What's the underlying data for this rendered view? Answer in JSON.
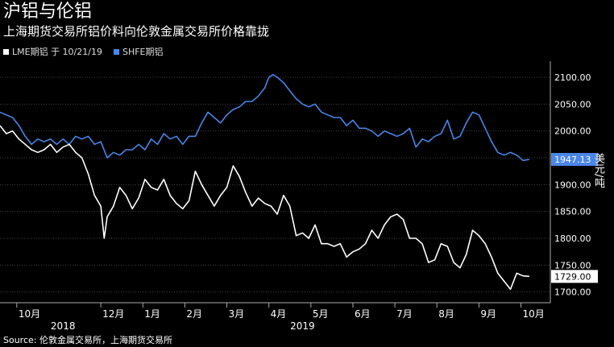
{
  "header": {
    "title": "沪铝与伦铝",
    "subtitle": "上海期货交易所铝价料向伦敦金属交易所价格靠拢"
  },
  "legend": {
    "lme_label": "LME期铝 于 10/21/19",
    "shfe_label": "SHFE期铝"
  },
  "source": "Source: 伦敦金属交易所，上海期货交易所",
  "colors": {
    "lme": "#ffffff",
    "shfe": "#4a86e8",
    "background": "#000000",
    "grid": "#444444"
  },
  "chart_data": {
    "type": "line",
    "ylabel": "美元/吨",
    "ylim": [
      1680,
      2130
    ],
    "yticks": [
      1700,
      1750,
      1800,
      1850,
      1900,
      1950,
      2000,
      2050,
      2100
    ],
    "ytick_labels": [
      "1700.00",
      "1750.00",
      "1800.00",
      "1850.00",
      "1900.00",
      "1950.00",
      "2000.00",
      "2050.00",
      "2100.00"
    ],
    "x_range": [
      9.6,
      22.7
    ],
    "xticks": [
      {
        "x": 10,
        "label": "10月"
      },
      {
        "x": 12,
        "label": "12月"
      },
      {
        "x": 13,
        "label": "1月"
      },
      {
        "x": 14,
        "label": "2月"
      },
      {
        "x": 15,
        "label": "3月"
      },
      {
        "x": 16,
        "label": "4月"
      },
      {
        "x": 17,
        "label": "5月"
      },
      {
        "x": 18,
        "label": "6月"
      },
      {
        "x": 19,
        "label": "7月"
      },
      {
        "x": 20,
        "label": "8月"
      },
      {
        "x": 21,
        "label": "9月"
      },
      {
        "x": 22,
        "label": "10月"
      }
    ],
    "year_labels": [
      {
        "x": 11.1,
        "label": "2018"
      },
      {
        "x": 16.8,
        "label": "2019"
      }
    ],
    "last_value_labels": {
      "lme": "1729.00",
      "shfe": "1947.13"
    },
    "series": [
      {
        "name": "SHFE期铝",
        "key": "shfe",
        "points": [
          [
            9.6,
            2035
          ],
          [
            9.75,
            2030
          ],
          [
            9.9,
            2025
          ],
          [
            10.05,
            2010
          ],
          [
            10.2,
            1990
          ],
          [
            10.35,
            1975
          ],
          [
            10.5,
            1985
          ],
          [
            10.65,
            1980
          ],
          [
            10.8,
            1985
          ],
          [
            10.95,
            1975
          ],
          [
            11.1,
            1985
          ],
          [
            11.25,
            1975
          ],
          [
            11.4,
            1990
          ],
          [
            11.55,
            1985
          ],
          [
            11.7,
            1990
          ],
          [
            11.85,
            1975
          ],
          [
            12.0,
            1980
          ],
          [
            12.15,
            1950
          ],
          [
            12.3,
            1960
          ],
          [
            12.45,
            1955
          ],
          [
            12.6,
            1965
          ],
          [
            12.75,
            1965
          ],
          [
            12.9,
            1975
          ],
          [
            13.05,
            1965
          ],
          [
            13.2,
            1985
          ],
          [
            13.35,
            1975
          ],
          [
            13.5,
            1995
          ],
          [
            13.65,
            1985
          ],
          [
            13.8,
            1990
          ],
          [
            13.95,
            1975
          ],
          [
            14.1,
            1990
          ],
          [
            14.25,
            1990
          ],
          [
            14.4,
            2015
          ],
          [
            14.55,
            2035
          ],
          [
            14.7,
            2025
          ],
          [
            14.85,
            2015
          ],
          [
            15.0,
            2030
          ],
          [
            15.15,
            2040
          ],
          [
            15.3,
            2045
          ],
          [
            15.45,
            2055
          ],
          [
            15.6,
            2055
          ],
          [
            15.75,
            2065
          ],
          [
            15.9,
            2080
          ],
          [
            16.0,
            2100
          ],
          [
            16.1,
            2105
          ],
          [
            16.2,
            2100
          ],
          [
            16.35,
            2090
          ],
          [
            16.5,
            2075
          ],
          [
            16.65,
            2060
          ],
          [
            16.8,
            2050
          ],
          [
            16.95,
            2045
          ],
          [
            17.1,
            2050
          ],
          [
            17.25,
            2035
          ],
          [
            17.4,
            2030
          ],
          [
            17.55,
            2025
          ],
          [
            17.7,
            2025
          ],
          [
            17.85,
            2010
          ],
          [
            18.0,
            2020
          ],
          [
            18.15,
            2005
          ],
          [
            18.3,
            2005
          ],
          [
            18.45,
            2000
          ],
          [
            18.6,
            1990
          ],
          [
            18.75,
            2000
          ],
          [
            18.9,
            1995
          ],
          [
            19.05,
            1990
          ],
          [
            19.2,
            1995
          ],
          [
            19.35,
            2005
          ],
          [
            19.5,
            1970
          ],
          [
            19.65,
            1985
          ],
          [
            19.8,
            1980
          ],
          [
            19.95,
            1990
          ],
          [
            20.1,
            1995
          ],
          [
            20.25,
            2020
          ],
          [
            20.4,
            1985
          ],
          [
            20.55,
            1990
          ],
          [
            20.7,
            2015
          ],
          [
            20.85,
            2035
          ],
          [
            21.0,
            2030
          ],
          [
            21.15,
            2005
          ],
          [
            21.3,
            1980
          ],
          [
            21.45,
            1960
          ],
          [
            21.6,
            1955
          ],
          [
            21.75,
            1960
          ],
          [
            21.9,
            1955
          ],
          [
            22.05,
            1945
          ],
          [
            22.2,
            1947
          ]
        ]
      },
      {
        "name": "LME期铝",
        "key": "lme",
        "points": [
          [
            9.6,
            2010
          ],
          [
            9.75,
            1995
          ],
          [
            9.9,
            2000
          ],
          [
            10.05,
            1985
          ],
          [
            10.2,
            1975
          ],
          [
            10.35,
            1965
          ],
          [
            10.5,
            1960
          ],
          [
            10.65,
            1965
          ],
          [
            10.8,
            1975
          ],
          [
            10.95,
            1960
          ],
          [
            11.1,
            1970
          ],
          [
            11.25,
            1975
          ],
          [
            11.4,
            1960
          ],
          [
            11.55,
            1950
          ],
          [
            11.7,
            1920
          ],
          [
            11.85,
            1880
          ],
          [
            12.0,
            1860
          ],
          [
            12.08,
            1800
          ],
          [
            12.15,
            1840
          ],
          [
            12.3,
            1860
          ],
          [
            12.45,
            1895
          ],
          [
            12.6,
            1880
          ],
          [
            12.75,
            1855
          ],
          [
            12.9,
            1875
          ],
          [
            13.05,
            1910
          ],
          [
            13.2,
            1895
          ],
          [
            13.35,
            1890
          ],
          [
            13.5,
            1910
          ],
          [
            13.65,
            1880
          ],
          [
            13.8,
            1865
          ],
          [
            13.95,
            1855
          ],
          [
            14.1,
            1870
          ],
          [
            14.25,
            1925
          ],
          [
            14.4,
            1900
          ],
          [
            14.55,
            1880
          ],
          [
            14.7,
            1860
          ],
          [
            14.85,
            1880
          ],
          [
            15.0,
            1895
          ],
          [
            15.15,
            1935
          ],
          [
            15.3,
            1915
          ],
          [
            15.45,
            1885
          ],
          [
            15.6,
            1860
          ],
          [
            15.75,
            1875
          ],
          [
            15.9,
            1865
          ],
          [
            16.05,
            1860
          ],
          [
            16.2,
            1845
          ],
          [
            16.35,
            1880
          ],
          [
            16.5,
            1860
          ],
          [
            16.65,
            1805
          ],
          [
            16.8,
            1810
          ],
          [
            16.95,
            1800
          ],
          [
            17.1,
            1825
          ],
          [
            17.25,
            1790
          ],
          [
            17.4,
            1790
          ],
          [
            17.55,
            1785
          ],
          [
            17.7,
            1790
          ],
          [
            17.85,
            1765
          ],
          [
            18.0,
            1775
          ],
          [
            18.15,
            1780
          ],
          [
            18.3,
            1790
          ],
          [
            18.45,
            1815
          ],
          [
            18.6,
            1800
          ],
          [
            18.75,
            1825
          ],
          [
            18.9,
            1840
          ],
          [
            19.05,
            1845
          ],
          [
            19.2,
            1835
          ],
          [
            19.35,
            1800
          ],
          [
            19.5,
            1800
          ],
          [
            19.65,
            1790
          ],
          [
            19.8,
            1755
          ],
          [
            19.95,
            1760
          ],
          [
            20.1,
            1790
          ],
          [
            20.25,
            1785
          ],
          [
            20.4,
            1755
          ],
          [
            20.55,
            1745
          ],
          [
            20.7,
            1770
          ],
          [
            20.85,
            1815
          ],
          [
            21.0,
            1805
          ],
          [
            21.15,
            1790
          ],
          [
            21.3,
            1765
          ],
          [
            21.45,
            1735
          ],
          [
            21.6,
            1720
          ],
          [
            21.75,
            1705
          ],
          [
            21.9,
            1735
          ],
          [
            22.05,
            1730
          ],
          [
            22.2,
            1729
          ]
        ]
      }
    ]
  }
}
